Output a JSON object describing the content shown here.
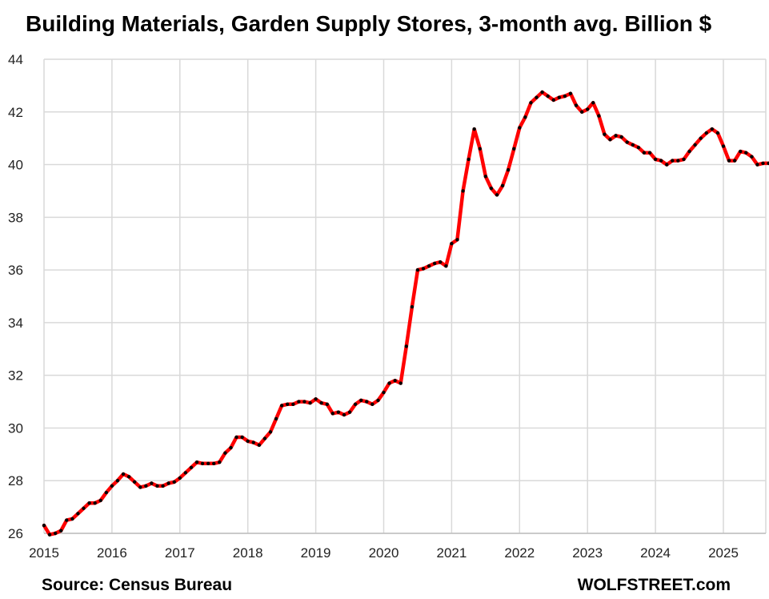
{
  "chart_data": {
    "type": "line",
    "title": "Building Materials, Garden Supply Stores, 3-month avg. Billion $",
    "xlabel": "",
    "ylabel": "",
    "ylim": [
      26,
      44
    ],
    "yticks": [
      26,
      28,
      30,
      32,
      34,
      36,
      38,
      40,
      42,
      44
    ],
    "xlim": [
      2015.0,
      2025.68
    ],
    "xticks": [
      2015,
      2016,
      2017,
      2018,
      2019,
      2020,
      2021,
      2022,
      2023,
      2024,
      2025
    ],
    "grid": true,
    "legend": "none",
    "series": [
      {
        "color": "#ff0000",
        "marker_color": "#000000",
        "x": [
          2015.0,
          2015.083,
          2015.167,
          2015.25,
          2015.333,
          2015.417,
          2015.5,
          2015.583,
          2015.667,
          2015.75,
          2015.833,
          2015.917,
          2016.0,
          2016.083,
          2016.167,
          2016.25,
          2016.333,
          2016.417,
          2016.5,
          2016.583,
          2016.667,
          2016.75,
          2016.833,
          2016.917,
          2017.0,
          2017.083,
          2017.167,
          2017.25,
          2017.333,
          2017.417,
          2017.5,
          2017.583,
          2017.667,
          2017.75,
          2017.833,
          2017.917,
          2018.0,
          2018.083,
          2018.167,
          2018.25,
          2018.333,
          2018.417,
          2018.5,
          2018.583,
          2018.667,
          2018.75,
          2018.833,
          2018.917,
          2019.0,
          2019.083,
          2019.167,
          2019.25,
          2019.333,
          2019.417,
          2019.5,
          2019.583,
          2019.667,
          2019.75,
          2019.833,
          2019.917,
          2020.0,
          2020.083,
          2020.167,
          2020.25,
          2020.333,
          2020.417,
          2020.5,
          2020.583,
          2020.667,
          2020.75,
          2020.833,
          2020.917,
          2021.0,
          2021.083,
          2021.167,
          2021.25,
          2021.333,
          2021.417,
          2021.5,
          2021.583,
          2021.667,
          2021.75,
          2021.833,
          2021.917,
          2022.0,
          2022.083,
          2022.167,
          2022.25,
          2022.333,
          2022.417,
          2022.5,
          2022.583,
          2022.667,
          2022.75,
          2022.833,
          2022.917,
          2023.0,
          2023.083,
          2023.167,
          2023.25,
          2023.333,
          2023.417,
          2023.5,
          2023.583,
          2023.667,
          2023.75,
          2023.833,
          2023.917,
          2024.0,
          2024.083,
          2024.167,
          2024.25,
          2024.333,
          2024.417,
          2024.5,
          2024.583,
          2024.667,
          2024.75,
          2024.833,
          2024.917,
          2025.0,
          2025.083,
          2025.167,
          2025.25,
          2025.333,
          2025.417,
          2025.5,
          2025.583,
          2025.667
        ],
        "values": [
          26.3,
          25.95,
          26.0,
          26.1,
          26.5,
          26.55,
          26.75,
          26.95,
          27.15,
          27.15,
          27.25,
          27.55,
          27.8,
          28.0,
          28.25,
          28.15,
          27.95,
          27.75,
          27.8,
          27.9,
          27.8,
          27.8,
          27.9,
          27.95,
          28.1,
          28.3,
          28.5,
          28.7,
          28.65,
          28.65,
          28.65,
          28.7,
          29.05,
          29.25,
          29.65,
          29.65,
          29.5,
          29.45,
          29.35,
          29.6,
          29.85,
          30.35,
          30.85,
          30.9,
          30.9,
          31.0,
          31.0,
          30.95,
          31.1,
          30.95,
          30.9,
          30.55,
          30.6,
          30.5,
          30.6,
          30.9,
          31.05,
          31.0,
          30.9,
          31.05,
          31.35,
          31.7,
          31.8,
          31.7,
          33.1,
          34.6,
          36.0,
          36.05,
          36.15,
          36.25,
          36.3,
          36.15,
          37.0,
          37.15,
          39.0,
          40.2,
          41.35,
          40.6,
          39.55,
          39.1,
          38.85,
          39.2,
          39.8,
          40.6,
          41.4,
          41.8,
          42.35,
          42.55,
          42.75,
          42.6,
          42.45,
          42.55,
          42.6,
          42.7,
          42.25,
          42.0,
          42.1,
          42.35,
          41.85,
          41.15,
          40.95,
          41.1,
          41.05,
          40.85,
          40.75,
          40.65,
          40.45,
          40.45,
          40.2,
          40.15,
          40.0,
          40.15,
          40.15,
          40.2,
          40.5,
          40.75,
          41.0,
          41.2,
          41.35,
          41.2,
          40.7,
          40.15,
          40.15,
          40.5,
          40.45,
          40.3,
          40.0,
          40.05,
          40.05
        ]
      }
    ]
  },
  "footer": {
    "source": "Source: Census Bureau",
    "credit": "WOLFSTREET.com"
  }
}
